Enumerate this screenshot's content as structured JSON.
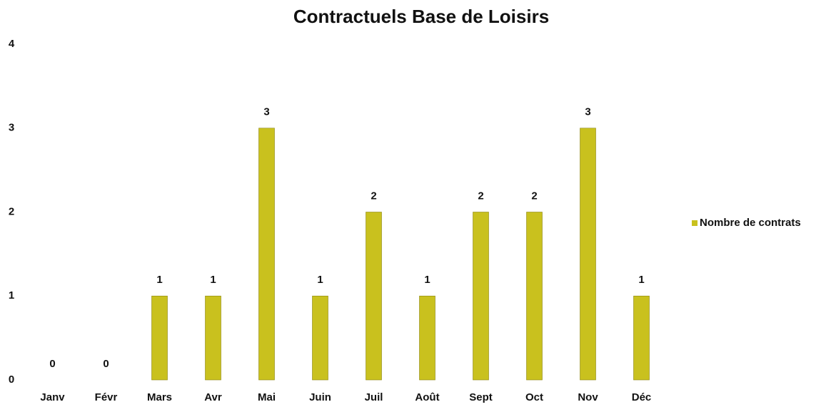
{
  "chart_data": {
    "type": "bar",
    "title": "Contractuels Base de Loisirs",
    "categories": [
      "Janv",
      "Févr",
      "Mars",
      "Avr",
      "Mai",
      "Juin",
      "Juil",
      "Août",
      "Sept",
      "Oct",
      "Nov",
      "Déc"
    ],
    "series": [
      {
        "name": "Nombre de contrats",
        "color": "#c9c11e",
        "values": [
          0,
          0,
          1,
          1,
          3,
          1,
          2,
          1,
          2,
          2,
          3,
          1
        ]
      }
    ],
    "ylim": [
      0,
      4
    ],
    "yticks": [
      0,
      1,
      2,
      3,
      4
    ],
    "grid": false,
    "legend": "right"
  }
}
